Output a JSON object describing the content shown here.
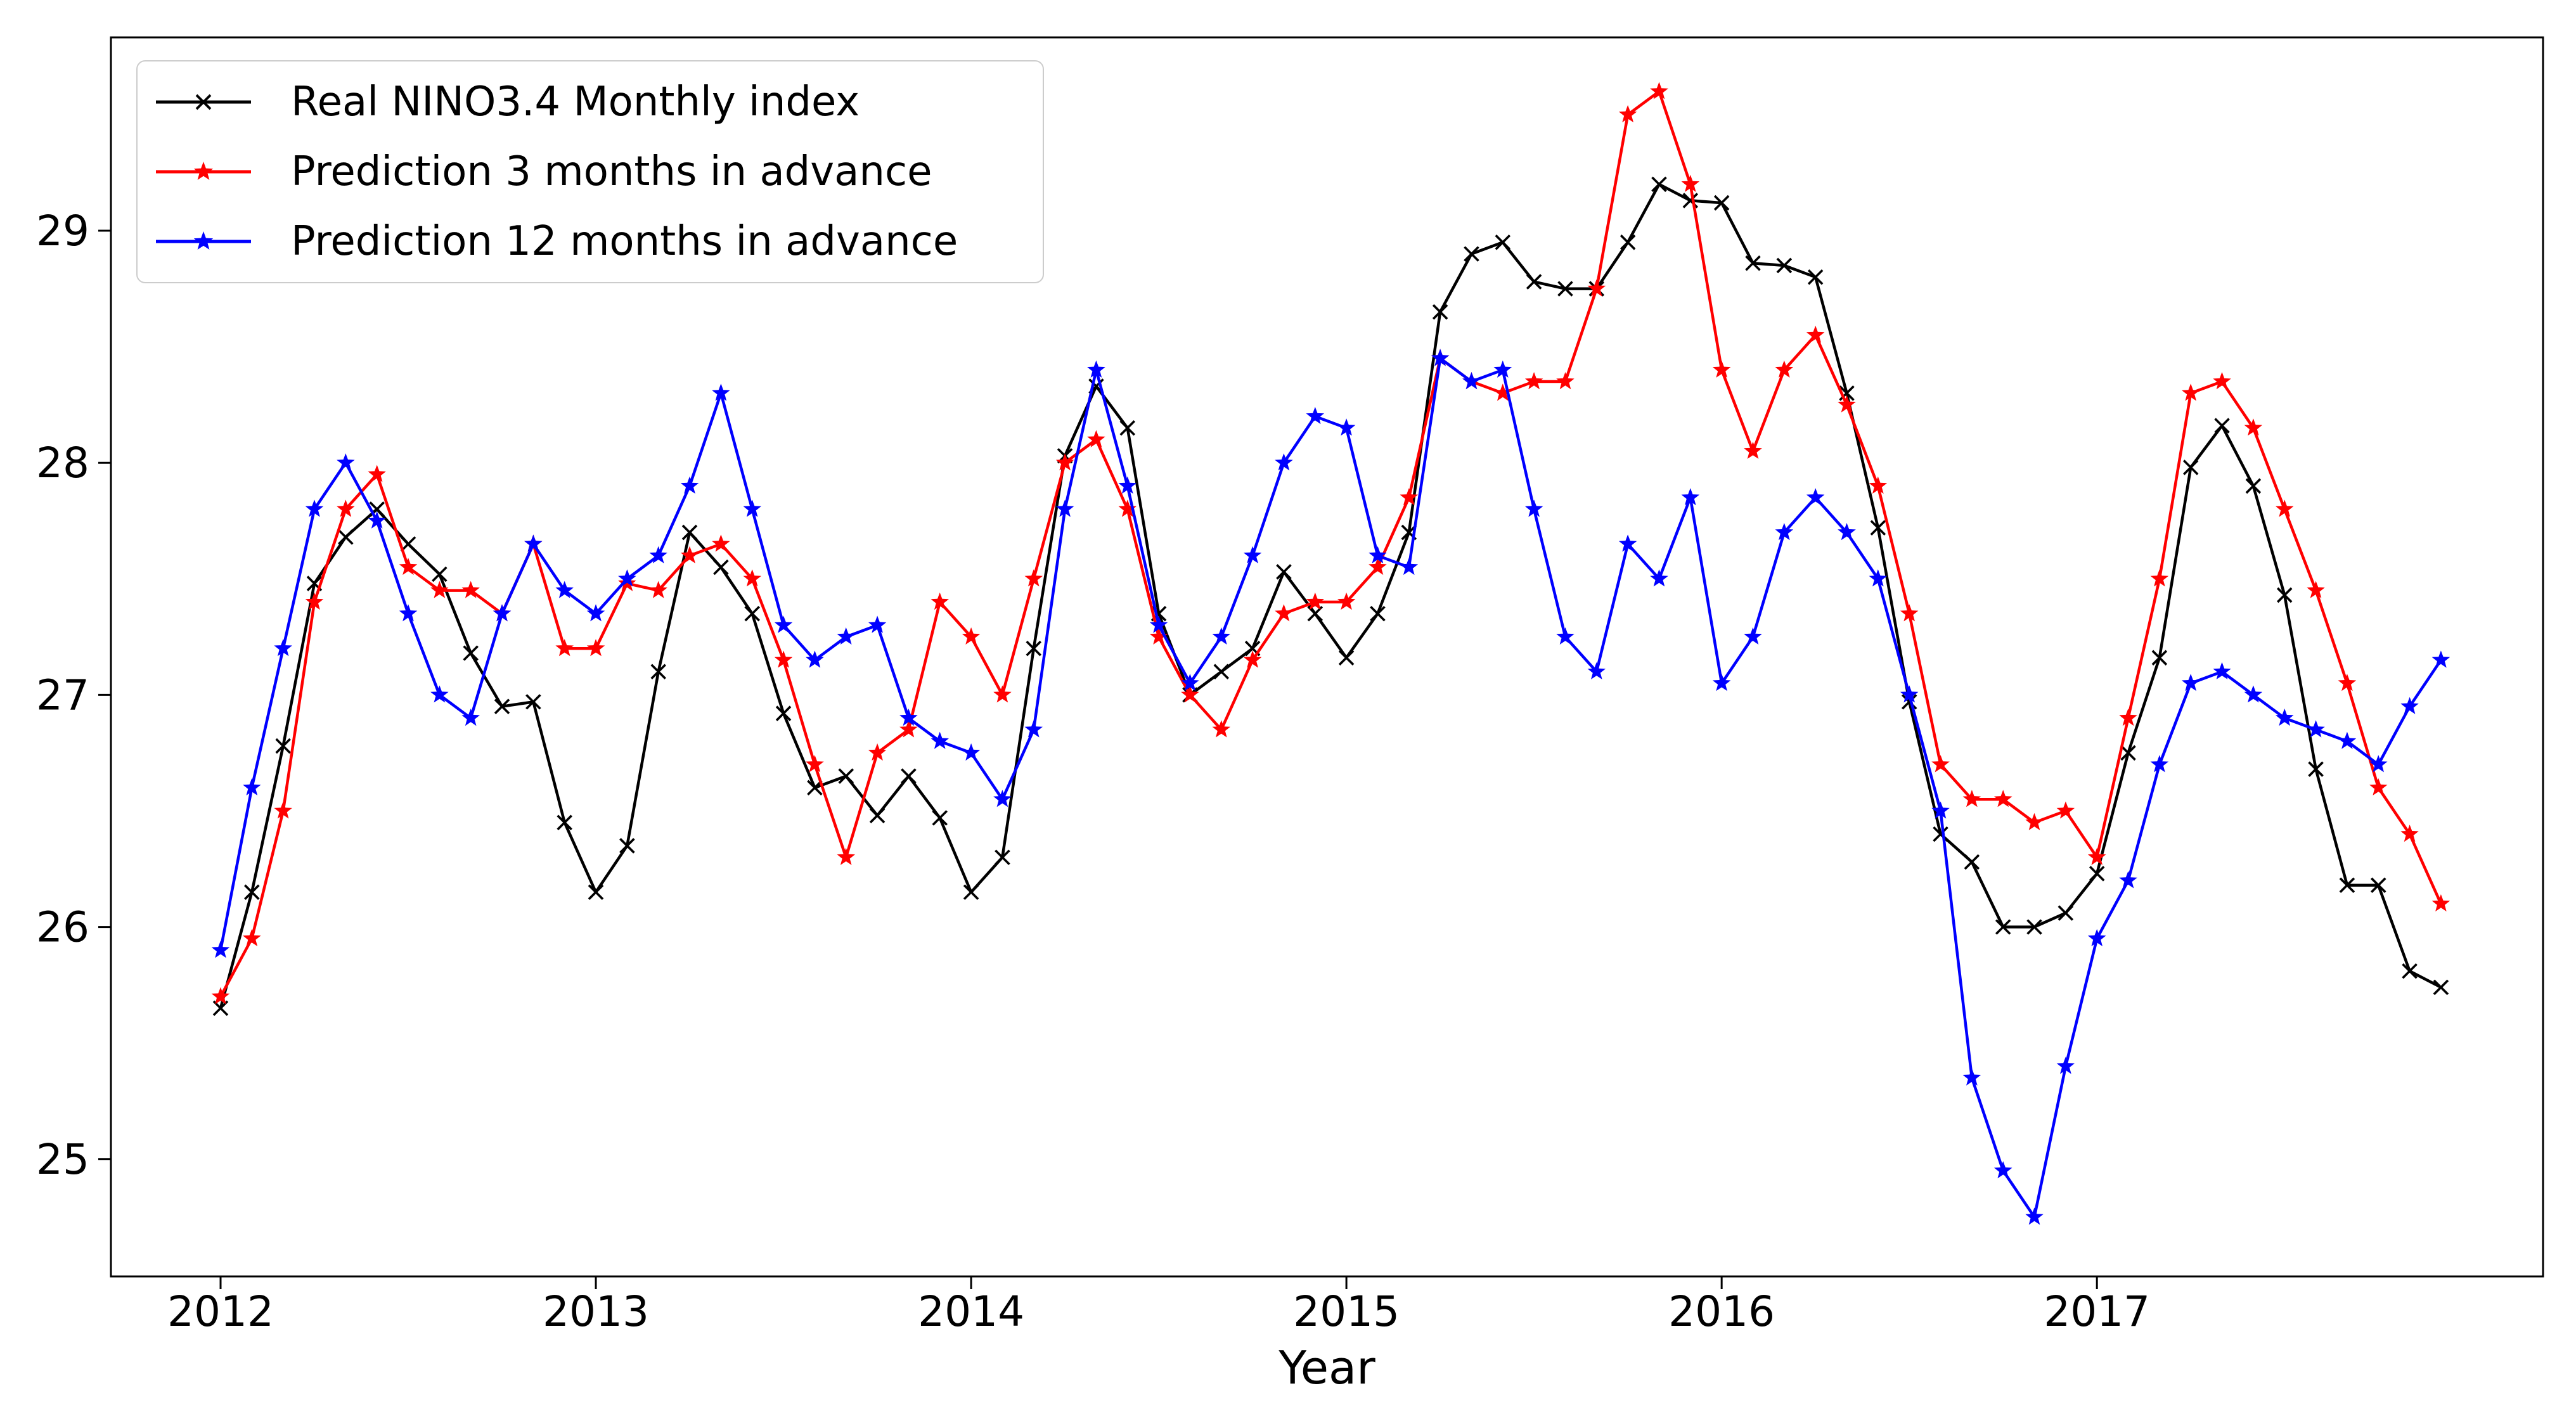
{
  "figure": {
    "xlabel": "Year",
    "background_color": "#ffffff",
    "axes_color": "#000000"
  },
  "chart_data": {
    "type": "line",
    "title": "",
    "xlabel": "Year",
    "ylabel": "",
    "grid": false,
    "legend_position": "upper left",
    "x_start_year": 2012,
    "x_step": "1 month",
    "n_points": 72,
    "x_tick_labels": [
      "2012",
      "2013",
      "2014",
      "2015",
      "2016",
      "2017"
    ],
    "y_tick_labels": [
      "25",
      "26",
      "27",
      "28",
      "29"
    ],
    "y_ticks": [
      25,
      26,
      27,
      28,
      29
    ],
    "x_ticks_years": [
      2012,
      2013,
      2014,
      2015,
      2016,
      2017
    ],
    "xlim_years": [
      2011.704,
      2018.152
    ],
    "ylim": [
      24.5,
      29.83
    ],
    "series": [
      {
        "name": "Real NINO3.4 Monthly index",
        "color": "#000000",
        "marker": "x",
        "values": [
          25.65,
          26.15,
          26.78,
          27.48,
          27.68,
          27.8,
          27.65,
          27.52,
          27.18,
          26.95,
          26.97,
          26.45,
          26.15,
          26.35,
          27.1,
          27.7,
          27.55,
          27.35,
          26.92,
          26.6,
          26.65,
          26.48,
          26.65,
          26.47,
          26.15,
          26.3,
          27.2,
          28.03,
          28.33,
          28.15,
          27.35,
          27.0,
          27.1,
          27.2,
          27.53,
          27.35,
          27.16,
          27.35,
          27.7,
          28.65,
          28.9,
          28.95,
          28.78,
          28.75,
          28.75,
          28.95,
          29.2,
          29.13,
          29.12,
          28.86,
          28.85,
          28.8,
          28.3,
          27.72,
          26.97,
          26.4,
          26.28,
          26.0,
          26.0,
          26.06,
          26.23,
          26.75,
          27.16,
          27.98,
          28.16,
          27.9,
          27.43,
          26.68,
          26.18,
          26.18,
          25.81,
          25.74
        ]
      },
      {
        "name": "Prediction 3 months in advance",
        "color": "#ff0000",
        "marker": "star",
        "values": [
          25.7,
          25.95,
          26.5,
          27.4,
          27.8,
          27.95,
          27.55,
          27.45,
          27.45,
          27.35,
          27.65,
          27.2,
          27.2,
          27.48,
          27.45,
          27.6,
          27.65,
          27.5,
          27.15,
          26.7,
          26.3,
          26.75,
          26.85,
          27.4,
          27.25,
          27.0,
          27.5,
          28.0,
          28.1,
          27.8,
          27.25,
          27.0,
          26.85,
          27.15,
          27.35,
          27.4,
          27.4,
          27.55,
          27.85,
          28.45,
          28.35,
          28.3,
          28.35,
          28.35,
          28.75,
          29.5,
          29.6,
          29.2,
          28.4,
          28.05,
          28.4,
          28.55,
          28.25,
          27.9,
          27.35,
          26.7,
          26.55,
          26.55,
          26.45,
          26.5,
          26.3,
          26.9,
          27.5,
          28.3,
          28.35,
          28.15,
          27.8,
          27.45,
          27.05,
          26.6,
          26.4,
          26.1
        ]
      },
      {
        "name": "Prediction 12 months in advance",
        "color": "#0000ff",
        "marker": "star",
        "values": [
          25.9,
          26.6,
          27.2,
          27.8,
          28.0,
          27.75,
          27.35,
          27.0,
          26.9,
          27.35,
          27.65,
          27.45,
          27.35,
          27.5,
          27.6,
          27.9,
          28.3,
          27.8,
          27.3,
          27.15,
          27.25,
          27.3,
          26.9,
          26.8,
          26.75,
          26.55,
          26.85,
          27.8,
          28.4,
          27.9,
          27.3,
          27.05,
          27.25,
          27.6,
          28.0,
          28.2,
          28.15,
          27.6,
          27.55,
          28.45,
          28.35,
          28.4,
          27.8,
          27.25,
          27.1,
          27.65,
          27.5,
          27.85,
          27.05,
          27.25,
          27.7,
          27.85,
          27.7,
          27.5,
          27.0,
          26.5,
          25.35,
          24.95,
          24.75,
          25.4,
          25.95,
          26.2,
          26.7,
          27.05,
          27.1,
          27.0,
          26.9,
          26.85,
          26.8,
          26.7,
          26.95,
          27.15
        ]
      }
    ]
  }
}
